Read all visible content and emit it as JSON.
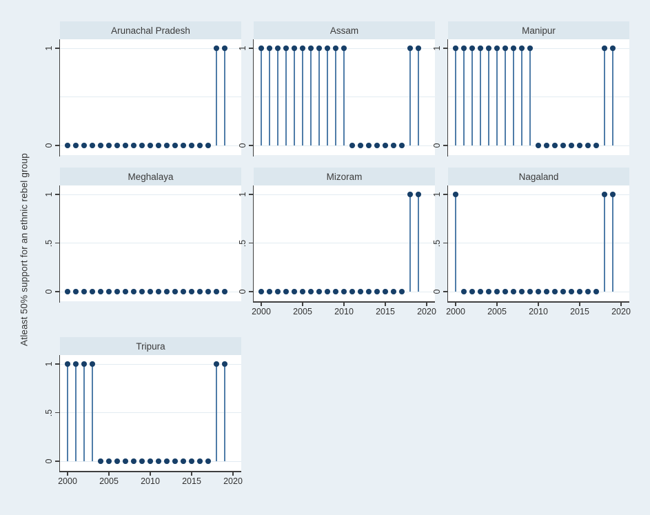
{
  "chart_data": {
    "type": "scatter",
    "subtype": "stem-spike-plot",
    "ylabel": "Atleast 50%  support for an ethnic rebel group",
    "xlabel": "",
    "years": [
      2000,
      2001,
      2002,
      2003,
      2004,
      2005,
      2006,
      2007,
      2008,
      2009,
      2010,
      2011,
      2012,
      2013,
      2014,
      2015,
      2016,
      2017,
      2018,
      2019
    ],
    "xlim": [
      2000,
      2020
    ],
    "ylim": [
      0,
      1
    ],
    "x_tick_labels": [
      "2000",
      "2005",
      "2010",
      "2015",
      "2020"
    ],
    "x_tick_values": [
      2000,
      2005,
      2010,
      2015,
      2020
    ],
    "y_tick_labels_full": [
      "1",
      ".5",
      "0"
    ],
    "y_tick_values_full": [
      1,
      0.5,
      0
    ],
    "y_tick_labels_top_row": [
      "1",
      "0"
    ],
    "y_tick_values_top_row": [
      1,
      0
    ],
    "grid": true,
    "legend": "none",
    "panels": [
      {
        "title": "Arunachal Pradesh",
        "values": [
          0,
          0,
          0,
          0,
          0,
          0,
          0,
          0,
          0,
          0,
          0,
          0,
          0,
          0,
          0,
          0,
          0,
          0,
          1,
          1
        ]
      },
      {
        "title": "Assam",
        "values": [
          1,
          1,
          1,
          1,
          1,
          1,
          1,
          1,
          1,
          1,
          1,
          0,
          0,
          0,
          0,
          0,
          0,
          0,
          1,
          1
        ]
      },
      {
        "title": "Manipur",
        "values": [
          1,
          1,
          1,
          1,
          1,
          1,
          1,
          1,
          1,
          1,
          0,
          0,
          0,
          0,
          0,
          0,
          0,
          0,
          1,
          1
        ]
      },
      {
        "title": "Meghalaya",
        "values": [
          0,
          0,
          0,
          0,
          0,
          0,
          0,
          0,
          0,
          0,
          0,
          0,
          0,
          0,
          0,
          0,
          0,
          0,
          0,
          0
        ]
      },
      {
        "title": "Mizoram",
        "values": [
          0,
          0,
          0,
          0,
          0,
          0,
          0,
          0,
          0,
          0,
          0,
          0,
          0,
          0,
          0,
          0,
          0,
          0,
          1,
          1
        ]
      },
      {
        "title": "Nagaland",
        "values": [
          1,
          0,
          0,
          0,
          0,
          0,
          0,
          0,
          0,
          0,
          0,
          0,
          0,
          0,
          0,
          0,
          0,
          0,
          1,
          1
        ]
      },
      {
        "title": "Tripura",
        "values": [
          1,
          1,
          1,
          1,
          0,
          0,
          0,
          0,
          0,
          0,
          0,
          0,
          0,
          0,
          0,
          0,
          0,
          0,
          1,
          1
        ]
      }
    ],
    "colors": {
      "figure_bg": "#e9f0f5",
      "header_bg": "#dce7ee",
      "plot_bg": "#ffffff",
      "dot": "#173f68",
      "stem": "#4f7ca8",
      "axis": "#3f3f3f",
      "grid": "#e2ebf1",
      "text": "#303030"
    }
  }
}
